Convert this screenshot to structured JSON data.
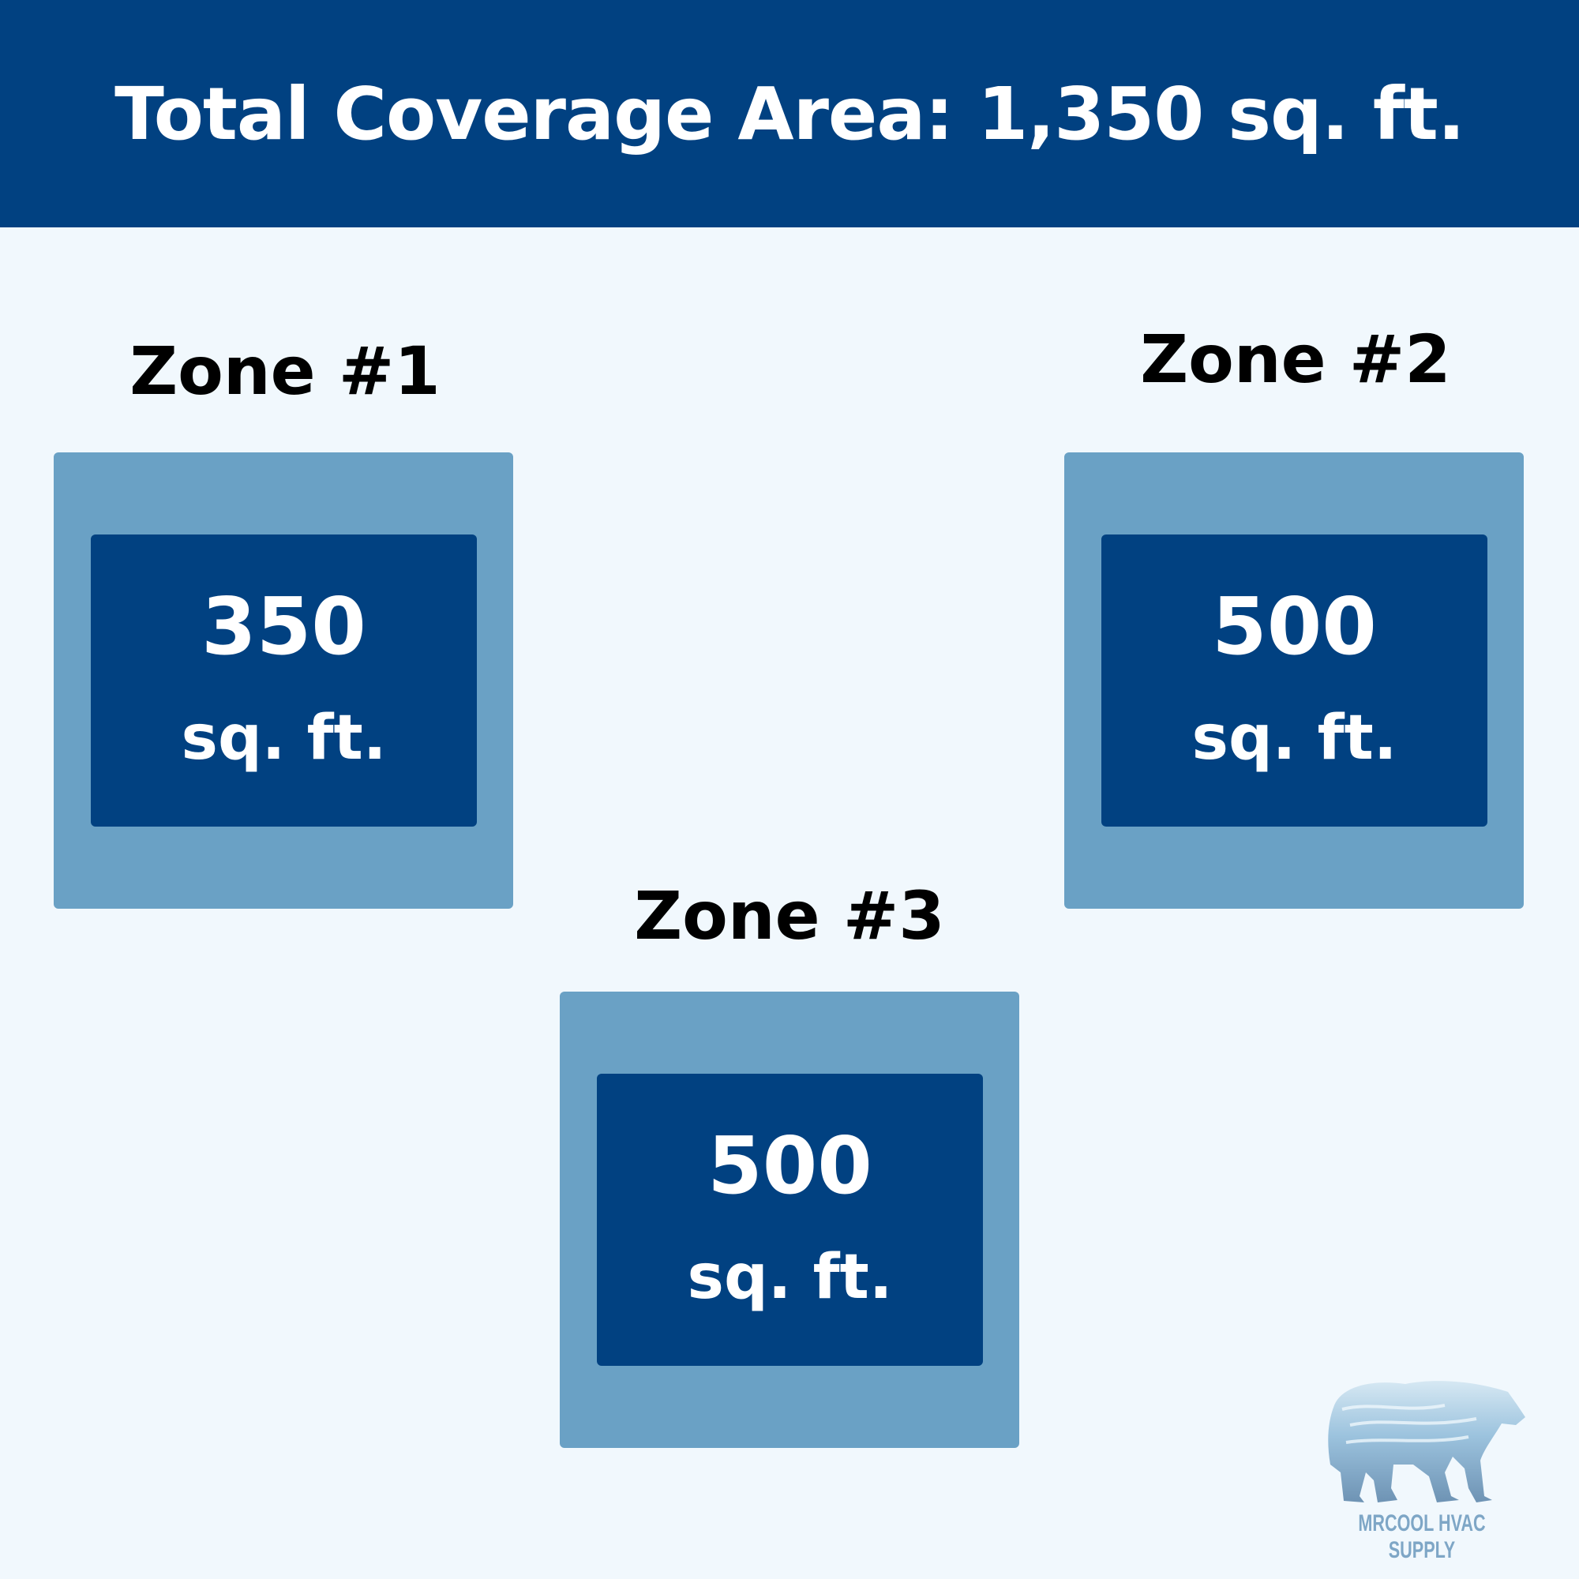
{
  "header": {
    "title": "Total Coverage Area: 1,350 sq. ft."
  },
  "zones": [
    {
      "label": "Zone #1",
      "area": "350",
      "unit": "sq. ft."
    },
    {
      "label": "Zone #2",
      "area": "500",
      "unit": "sq. ft."
    },
    {
      "label": "Zone #3",
      "area": "500",
      "unit": "sq. ft."
    }
  ],
  "logo": {
    "text": "MRCOOL HVAC SUPPLY",
    "icon": "polar-bear-icon"
  },
  "colors": {
    "header": "#014181",
    "background": "#f1f8fd",
    "zone_outer": "#6aa1c5",
    "zone_inner": "#014181"
  }
}
